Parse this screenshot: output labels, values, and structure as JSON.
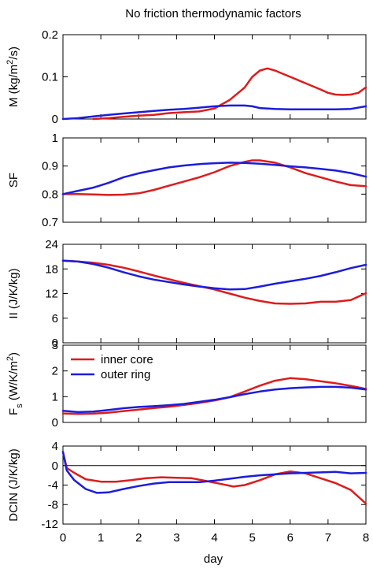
{
  "title": "No friction thermodynamic factors",
  "xlabel": "day",
  "colors": {
    "inner": "#dd1c1c",
    "outer": "#1c1cdd"
  },
  "chart_data": [
    {
      "type": "line",
      "ylabel": "M (kg/m^2/s)",
      "ylabel_parts": [
        "M (kg/m",
        "2",
        "/s)"
      ],
      "ylim": [
        0,
        0.2
      ],
      "yticks": [
        0,
        0.1,
        0.2
      ],
      "ytick_labels": [
        "0",
        "0.1",
        "0.2"
      ],
      "xlim": [
        0,
        8
      ],
      "series": [
        {
          "key": "inner",
          "x": [
            0.8,
            1.2,
            1.6,
            2.0,
            2.4,
            2.8,
            3.2,
            3.6,
            4.0,
            4.4,
            4.8,
            5.0,
            5.2,
            5.4,
            5.6,
            6.0,
            6.4,
            6.8,
            7.0,
            7.2,
            7.4,
            7.6,
            7.8,
            8.0
          ],
          "y": [
            0.0,
            0.002,
            0.005,
            0.008,
            0.01,
            0.014,
            0.016,
            0.018,
            0.025,
            0.045,
            0.075,
            0.1,
            0.115,
            0.12,
            0.115,
            0.1,
            0.085,
            0.07,
            0.062,
            0.058,
            0.057,
            0.058,
            0.062,
            0.075
          ]
        },
        {
          "key": "outer",
          "x": [
            0,
            0.4,
            0.8,
            1.2,
            1.6,
            2.0,
            2.4,
            2.8,
            3.2,
            3.6,
            4.0,
            4.4,
            4.8,
            5.0,
            5.2,
            5.6,
            6.0,
            6.4,
            6.8,
            7.2,
            7.6,
            8.0
          ],
          "y": [
            0.0,
            0.002,
            0.006,
            0.01,
            0.013,
            0.016,
            0.019,
            0.022,
            0.024,
            0.027,
            0.03,
            0.032,
            0.032,
            0.03,
            0.026,
            0.024,
            0.023,
            0.023,
            0.023,
            0.023,
            0.024,
            0.03
          ]
        }
      ]
    },
    {
      "type": "line",
      "ylabel": "SF",
      "ylim": [
        0.7,
        1.0
      ],
      "yticks": [
        0.7,
        0.8,
        0.9,
        1.0
      ],
      "ytick_labels": [
        "0.7",
        "0.8",
        "0.9",
        "1"
      ],
      "xlim": [
        0,
        8
      ],
      "series": [
        {
          "key": "inner",
          "x": [
            0,
            0.4,
            0.8,
            1.2,
            1.6,
            2.0,
            2.4,
            2.8,
            3.2,
            3.6,
            4.0,
            4.4,
            4.8,
            5.0,
            5.2,
            5.6,
            6.0,
            6.4,
            6.8,
            7.2,
            7.6,
            8.0
          ],
          "y": [
            0.8,
            0.8,
            0.799,
            0.797,
            0.798,
            0.803,
            0.815,
            0.83,
            0.845,
            0.86,
            0.878,
            0.9,
            0.915,
            0.92,
            0.92,
            0.912,
            0.895,
            0.875,
            0.86,
            0.845,
            0.832,
            0.828
          ]
        },
        {
          "key": "outer",
          "x": [
            0,
            0.4,
            0.8,
            1.2,
            1.6,
            2.0,
            2.4,
            2.8,
            3.2,
            3.6,
            4.0,
            4.4,
            4.8,
            5.2,
            5.6,
            6.0,
            6.4,
            6.8,
            7.2,
            7.6,
            8.0
          ],
          "y": [
            0.8,
            0.812,
            0.823,
            0.84,
            0.86,
            0.874,
            0.885,
            0.895,
            0.902,
            0.907,
            0.91,
            0.912,
            0.911,
            0.908,
            0.904,
            0.899,
            0.895,
            0.89,
            0.884,
            0.875,
            0.862
          ]
        }
      ]
    },
    {
      "type": "line",
      "ylabel": "II (J/K/kg)",
      "ylim": [
        0,
        24
      ],
      "yticks": [
        0,
        6,
        12,
        18,
        24
      ],
      "ytick_labels": [
        "0",
        "6",
        "12",
        "18",
        "24"
      ],
      "xlim": [
        0,
        8
      ],
      "series": [
        {
          "key": "inner",
          "x": [
            0,
            0.4,
            0.8,
            1.2,
            1.6,
            2.0,
            2.4,
            2.8,
            3.2,
            3.6,
            4.0,
            4.4,
            4.8,
            5.2,
            5.6,
            6.0,
            6.4,
            6.8,
            7.2,
            7.6,
            8.0
          ],
          "y": [
            20,
            19.8,
            19.5,
            19,
            18.3,
            17.4,
            16.4,
            15.5,
            14.6,
            13.8,
            13.0,
            12,
            11,
            10.2,
            9.6,
            9.5,
            9.6,
            10,
            10,
            10.4,
            12.1
          ]
        },
        {
          "key": "outer",
          "x": [
            0,
            0.4,
            0.8,
            1.2,
            1.6,
            2.0,
            2.4,
            2.8,
            3.2,
            3.6,
            4.0,
            4.4,
            4.8,
            5.2,
            5.6,
            6.0,
            6.4,
            6.8,
            7.2,
            7.6,
            8.0
          ],
          "y": [
            20,
            19.8,
            19.2,
            18.3,
            17.2,
            16.2,
            15.4,
            14.8,
            14.2,
            13.7,
            13.3,
            13.0,
            13.1,
            13.7,
            14.4,
            15.0,
            15.6,
            16.3,
            17.2,
            18.2,
            19.0
          ]
        }
      ]
    },
    {
      "type": "line",
      "ylabel": "F_s (W/K/m^2)",
      "ylabel_parts": [
        "F",
        "s",
        " (W/K/m",
        "2",
        ")"
      ],
      "ylim": [
        0,
        3
      ],
      "yticks": [
        0,
        1,
        2,
        3
      ],
      "ytick_labels": [
        "0",
        "1",
        "2",
        "3"
      ],
      "xlim": [
        0,
        8
      ],
      "legend": {
        "placement": "top-left",
        "entries": [
          {
            "key": "inner",
            "label": "inner core"
          },
          {
            "key": "outer",
            "label": "outer ring"
          }
        ]
      },
      "series": [
        {
          "key": "inner",
          "x": [
            0,
            0.4,
            0.8,
            1.2,
            1.6,
            2.0,
            2.4,
            2.8,
            3.2,
            3.6,
            4.0,
            4.4,
            4.8,
            5.2,
            5.6,
            6.0,
            6.4,
            6.8,
            7.2,
            7.6,
            8.0
          ],
          "y": [
            0.35,
            0.33,
            0.34,
            0.38,
            0.44,
            0.5,
            0.56,
            0.61,
            0.68,
            0.76,
            0.85,
            0.98,
            1.2,
            1.43,
            1.62,
            1.72,
            1.68,
            1.6,
            1.52,
            1.42,
            1.3
          ]
        },
        {
          "key": "outer",
          "x": [
            0,
            0.4,
            0.8,
            1.2,
            1.6,
            2.0,
            2.4,
            2.8,
            3.2,
            3.6,
            4.0,
            4.4,
            4.8,
            5.2,
            5.6,
            6.0,
            6.4,
            6.8,
            7.2,
            7.6,
            8.0
          ],
          "y": [
            0.45,
            0.4,
            0.42,
            0.48,
            0.55,
            0.6,
            0.63,
            0.67,
            0.72,
            0.8,
            0.88,
            0.98,
            1.1,
            1.2,
            1.28,
            1.33,
            1.36,
            1.38,
            1.38,
            1.35,
            1.28
          ]
        }
      ]
    },
    {
      "type": "line",
      "ylabel": "DCIN (J/K/kg)",
      "ylim": [
        -12,
        4
      ],
      "yticks": [
        -12,
        -8,
        -4,
        0,
        4
      ],
      "ytick_labels": [
        "-12",
        "-8",
        "-4",
        "0",
        "4"
      ],
      "xlim": [
        0,
        8
      ],
      "hline": 0,
      "series": [
        {
          "key": "inner",
          "x": [
            0,
            0.1,
            0.3,
            0.6,
            1.0,
            1.4,
            1.8,
            2.2,
            2.6,
            3.0,
            3.4,
            3.8,
            4.2,
            4.5,
            4.8,
            5.2,
            5.6,
            6.0,
            6.4,
            6.8,
            7.2,
            7.6,
            8.0
          ],
          "y": [
            2.8,
            -0.5,
            -1.5,
            -2.8,
            -3.3,
            -3.3,
            -3.0,
            -2.6,
            -2.4,
            -2.5,
            -2.6,
            -3.2,
            -3.8,
            -4.3,
            -4.0,
            -3.0,
            -1.8,
            -1.2,
            -1.6,
            -2.6,
            -3.6,
            -5.0,
            -7.8
          ]
        },
        {
          "key": "outer",
          "x": [
            0,
            0.1,
            0.3,
            0.6,
            0.9,
            1.2,
            1.6,
            2.0,
            2.4,
            2.8,
            3.2,
            3.6,
            4.0,
            4.4,
            4.8,
            5.2,
            5.6,
            6.0,
            6.4,
            6.8,
            7.2,
            7.6,
            8.0
          ],
          "y": [
            2.8,
            -1.0,
            -3.0,
            -4.8,
            -5.6,
            -5.5,
            -4.8,
            -4.2,
            -3.7,
            -3.4,
            -3.4,
            -3.4,
            -3.1,
            -2.7,
            -2.3,
            -2.0,
            -1.8,
            -1.6,
            -1.5,
            -1.4,
            -1.3,
            -1.6,
            -1.5
          ]
        }
      ]
    }
  ],
  "xticks": [
    0,
    1,
    2,
    3,
    4,
    5,
    6,
    7,
    8
  ],
  "xtick_labels": [
    "0",
    "1",
    "2",
    "3",
    "4",
    "5",
    "6",
    "7",
    "8"
  ]
}
